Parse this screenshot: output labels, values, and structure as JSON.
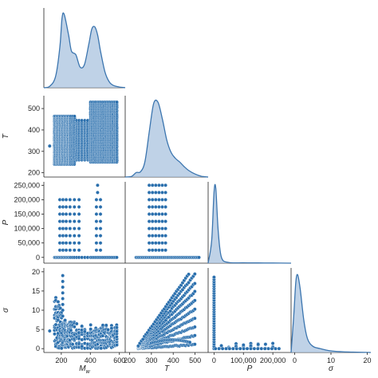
{
  "chart_data": {
    "type": "pairplot",
    "variables": [
      "M_w",
      "T",
      "P",
      "σ"
    ],
    "axis_labels": {
      "x": [
        {
          "base": "M",
          "sub": "w"
        },
        {
          "base": "T",
          "sub": ""
        },
        {
          "base": "P",
          "sub": ""
        },
        {
          "base": "σ",
          "sub": ""
        }
      ],
      "y": [
        {
          "base": "",
          "sub": ""
        },
        {
          "base": "T",
          "sub": ""
        },
        {
          "base": "P",
          "sub": ""
        },
        {
          "base": "σ",
          "sub": ""
        }
      ]
    },
    "ranges": {
      "M_w": [
        80,
        640
      ],
      "T": [
        180,
        560
      ],
      "P": [
        -20000,
        262000
      ],
      "σ": [
        -1,
        21
      ]
    },
    "ticks": {
      "M_w": [
        200,
        400,
        600
      ],
      "T": [
        200,
        300,
        400,
        500
      ],
      "P": [
        0,
        50000,
        100000,
        150000,
        200000,
        250000
      ],
      "P_x": [
        0,
        100000,
        200000
      ],
      "σ": [
        0,
        5,
        10,
        15,
        20
      ],
      "σ_x": [
        0,
        10,
        20
      ]
    },
    "tick_labels": {
      "M_w": [
        "200",
        "400",
        "600"
      ],
      "T": [
        "200",
        "300",
        "400",
        "500"
      ],
      "P": [
        "0",
        "50,000",
        "100,000",
        "150,000",
        "200,000",
        "250,000"
      ],
      "P_x": [
        "0",
        "100,000",
        "200,000"
      ],
      "σ": [
        "0",
        "5",
        "10",
        "15",
        "20"
      ],
      "σ_x": [
        "0",
        "10",
        "20"
      ]
    },
    "diagonal_kde": {
      "M_w": {
        "x": [
          80,
          120,
          160,
          190,
          205,
          220,
          250,
          270,
          300,
          330,
          360,
          390,
          410,
          430,
          450,
          470,
          500,
          530,
          560,
          600,
          640
        ],
        "y": [
          0,
          0.02,
          0.15,
          0.55,
          0.95,
          1.0,
          0.72,
          0.5,
          0.45,
          0.28,
          0.32,
          0.6,
          0.8,
          0.83,
          0.72,
          0.5,
          0.22,
          0.08,
          0.03,
          0.01,
          0
        ]
      },
      "T": {
        "x": [
          180,
          210,
          230,
          250,
          270,
          290,
          310,
          330,
          350,
          370,
          390,
          410,
          430,
          450,
          470,
          500,
          530,
          560
        ],
        "y": [
          0,
          0.01,
          0.06,
          0.07,
          0.2,
          0.6,
          0.98,
          1.0,
          0.78,
          0.5,
          0.33,
          0.25,
          0.2,
          0.14,
          0.09,
          0.04,
          0.01,
          0
        ]
      },
      "P": {
        "x": [
          -20000,
          -8000,
          0,
          6000,
          14000,
          25000,
          50000,
          100000,
          150000,
          200000,
          262000
        ],
        "y": [
          0,
          0.3,
          0.95,
          1.0,
          0.45,
          0.08,
          0.01,
          0.005,
          0.003,
          0.002,
          0
        ]
      },
      "σ": {
        "x": [
          -1,
          -0.3,
          0.3,
          0.8,
          1.5,
          2.5,
          3.5,
          5,
          7,
          10,
          13,
          16,
          21
        ],
        "y": [
          0,
          0.45,
          0.9,
          1.0,
          0.82,
          0.42,
          0.18,
          0.08,
          0.05,
          0.02,
          0.01,
          0.005,
          0
        ]
      }
    },
    "mw_columns": [
      154,
      162,
      170,
      178,
      186,
      194,
      202,
      210,
      218,
      226,
      234,
      242,
      250,
      258,
      266,
      278,
      290,
      306,
      322,
      342,
      362,
      382,
      402,
      414,
      426,
      438,
      450,
      462,
      474,
      486,
      498,
      510,
      522,
      534,
      546,
      558,
      570,
      582
    ],
    "mw_columns_P200k": [
      190,
      212,
      234,
      260,
      290,
      322,
      442,
      470
    ],
    "colors": {
      "point": "#2a6fad",
      "point_edge": "#ffffff",
      "kde_line": "#3b75af",
      "kde_fill": "#a9c3df",
      "axis": "#222222"
    }
  }
}
